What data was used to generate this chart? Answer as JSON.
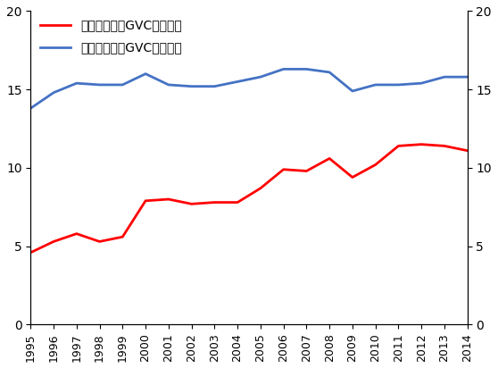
{
  "years": [
    1995,
    1996,
    1997,
    1998,
    1999,
    2000,
    2001,
    2002,
    2003,
    2004,
    2005,
    2006,
    2007,
    2008,
    2009,
    2010,
    2011,
    2012,
    2013,
    2014
  ],
  "low_wage": [
    4.6,
    5.3,
    5.8,
    5.3,
    5.6,
    7.9,
    8.0,
    7.7,
    7.8,
    7.8,
    8.7,
    9.9,
    9.8,
    10.6,
    9.4,
    10.2,
    11.4,
    11.5,
    11.4,
    11.1
  ],
  "high_wage": [
    13.8,
    14.8,
    15.4,
    15.3,
    15.3,
    16.0,
    15.3,
    15.2,
    15.2,
    15.5,
    15.8,
    16.3,
    16.3,
    16.1,
    14.9,
    15.3,
    15.3,
    15.4,
    15.8,
    15.8
  ],
  "low_wage_color": "#FF0000",
  "high_wage_color": "#4472C4",
  "low_wage_label": "低賣金諸国－GVC後方参加",
  "high_wage_label": "高賣金諸国－GVC後方参加",
  "ylim": [
    0,
    20
  ],
  "yticks": [
    0,
    5,
    10,
    15,
    20
  ],
  "line_width": 2.0,
  "background_color": "#FFFFFF"
}
